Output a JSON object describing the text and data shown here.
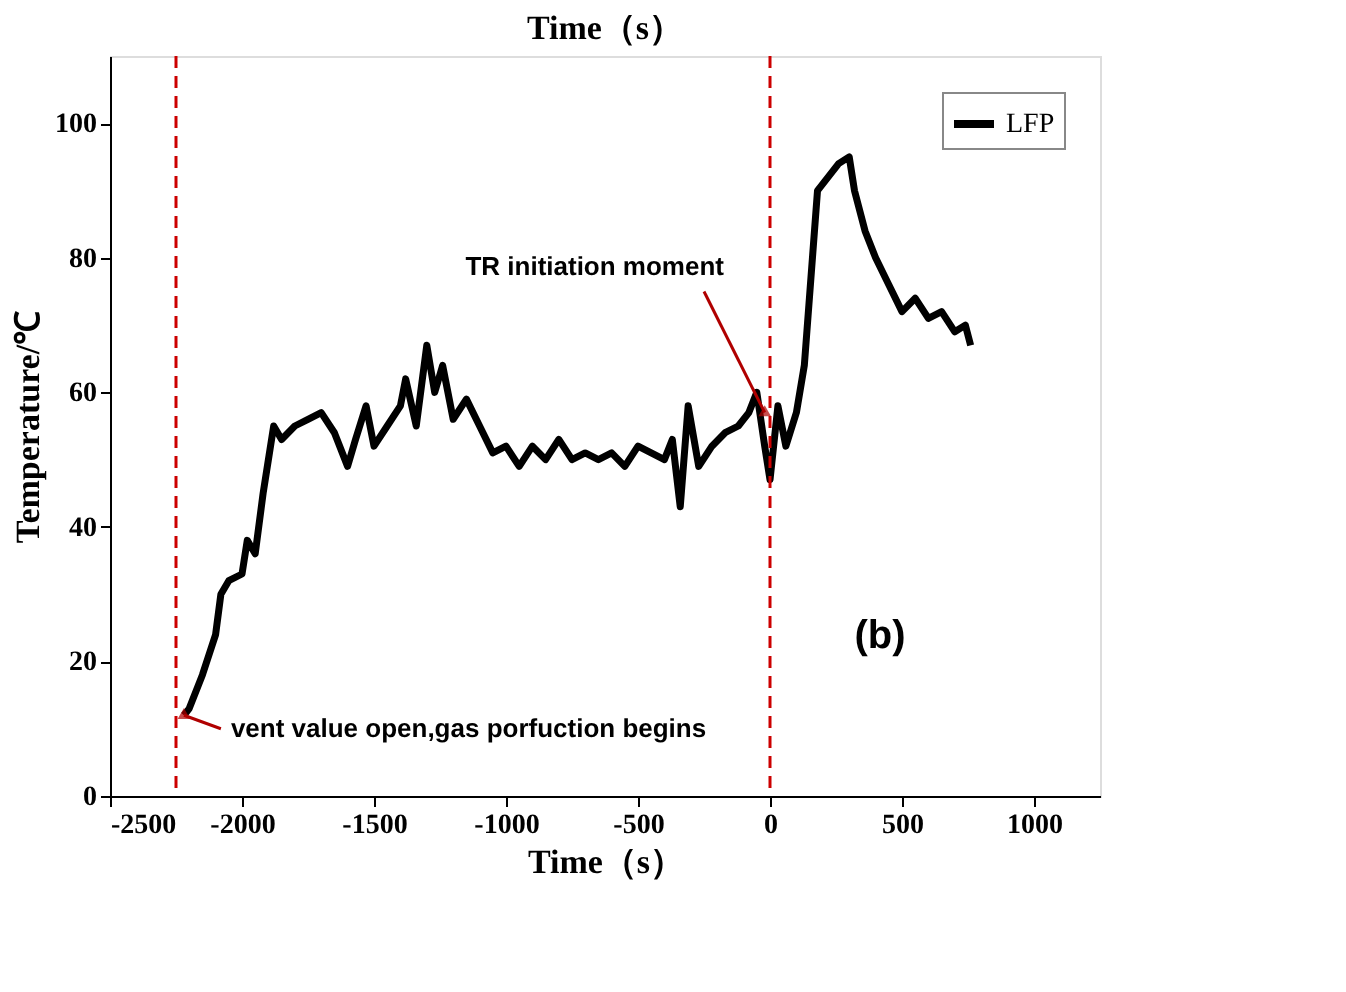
{
  "chart_data": {
    "type": "line",
    "title": "Time（s）",
    "xlabel": "Time（s）",
    "ylabel": "Temperature/℃",
    "x": [
      -2220,
      -2200,
      -2150,
      -2100,
      -2080,
      -2050,
      -2000,
      -1980,
      -1950,
      -1920,
      -1900,
      -1880,
      -1850,
      -1800,
      -1750,
      -1700,
      -1650,
      -1600,
      -1570,
      -1530,
      -1500,
      -1450,
      -1400,
      -1380,
      -1340,
      -1300,
      -1270,
      -1240,
      -1200,
      -1150,
      -1100,
      -1050,
      -1000,
      -950,
      -900,
      -850,
      -800,
      -750,
      -700,
      -650,
      -600,
      -550,
      -500,
      -450,
      -400,
      -370,
      -340,
      -310,
      -270,
      -220,
      -170,
      -120,
      -80,
      -50,
      -20,
      0,
      30,
      60,
      100,
      130,
      180,
      220,
      260,
      300,
      320,
      360,
      400,
      450,
      500,
      550,
      600,
      650,
      700,
      740,
      760
    ],
    "series": [
      {
        "name": "LFP",
        "color": "#000000",
        "values": [
          12,
          13,
          18,
          24,
          30,
          32,
          33,
          38,
          36,
          45,
          50,
          55,
          53,
          55,
          56,
          57,
          54,
          49,
          53,
          58,
          52,
          55,
          58,
          62,
          55,
          67,
          60,
          64,
          56,
          59,
          55,
          51,
          52,
          49,
          52,
          50,
          53,
          50,
          51,
          50,
          51,
          49,
          52,
          51,
          50,
          53,
          43,
          58,
          49,
          52,
          54,
          55,
          57,
          60,
          52,
          47,
          58,
          52,
          57,
          64,
          90,
          92,
          94,
          95,
          90,
          84,
          80,
          76,
          72,
          74,
          71,
          72,
          69,
          70,
          67
        ]
      }
    ],
    "xlim": [
      -2500,
      1250
    ],
    "xticks": [
      -2500,
      -2000,
      -1500,
      -1000,
      -500,
      0,
      500,
      1000
    ],
    "ylim": [
      0,
      110
    ],
    "yticks": [
      0,
      20,
      40,
      60,
      80,
      100
    ],
    "ref_lines": [
      {
        "axis": "x",
        "value": -2250,
        "color": "#cc0000",
        "line_style": "dashed"
      },
      {
        "axis": "x",
        "value": 0,
        "color": "#cc0000",
        "line_style": "dashed"
      }
    ],
    "annotations": [
      {
        "text": "TR initiation moment",
        "x": -20,
        "y": 57
      },
      {
        "text": "vent value open,gas porfuction begins",
        "x": -2220,
        "y": 12
      },
      "(b)"
    ],
    "legend": "top right",
    "grid": false,
    "marker": "none",
    "line_style": "solid"
  }
}
